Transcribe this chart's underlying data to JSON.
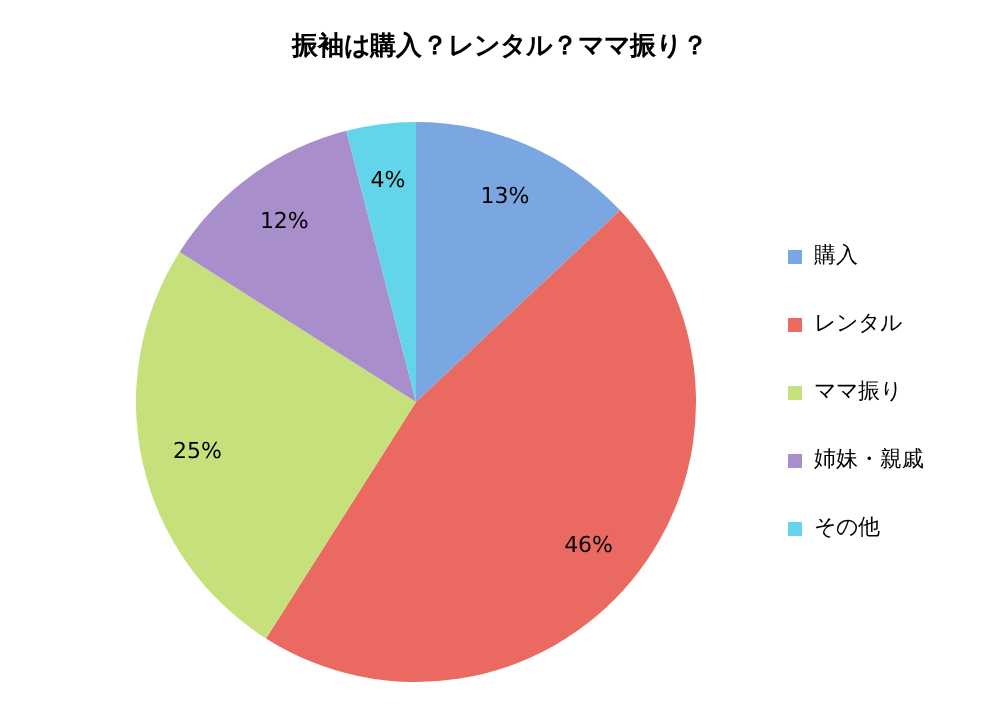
{
  "chart_data": {
    "type": "pie",
    "title": "振袖は購入？レンタル？ママ振り？",
    "categories": [
      "購入",
      "レンタル",
      "ママ振り",
      "姉妹・親戚",
      "その他"
    ],
    "values": [
      13,
      46,
      25,
      12,
      4
    ],
    "value_labels": [
      "13%",
      "46%",
      "25%",
      "12%",
      "4%"
    ],
    "colors": [
      "#7aa7e2",
      "#ea6a62",
      "#c6e07c",
      "#a88fcb",
      "#63d5ea"
    ],
    "legend": "right"
  }
}
